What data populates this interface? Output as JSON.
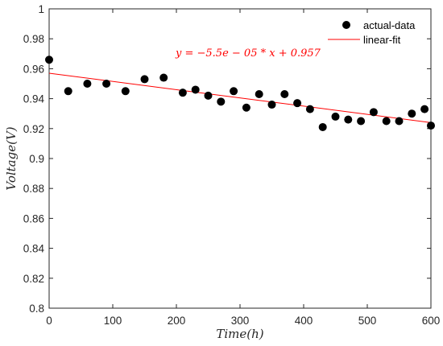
{
  "chart_data": {
    "type": "scatter",
    "xlabel": "Time(h)",
    "ylabel": "Voltage(V)",
    "xlim": [
      0,
      600
    ],
    "ylim": [
      0.8,
      1.0
    ],
    "x_ticks": [
      "0",
      "100",
      "200",
      "300",
      "400",
      "500",
      "600"
    ],
    "y_ticks": [
      "0.8",
      "0.82",
      "0.84",
      "0.86",
      "0.88",
      "0.9",
      "0.92",
      "0.94",
      "0.96",
      "0.98",
      "1"
    ],
    "grid": false,
    "legend_position": "top-right",
    "series": [
      {
        "name": "actual-data",
        "style": "markers",
        "color": "#000000",
        "x": [
          0,
          30,
          60,
          90,
          120,
          150,
          180,
          210,
          230,
          250,
          270,
          290,
          310,
          330,
          350,
          370,
          390,
          410,
          430,
          450,
          470,
          490,
          510,
          530,
          550,
          570,
          590,
          600
        ],
        "y": [
          0.966,
          0.945,
          0.95,
          0.95,
          0.945,
          0.953,
          0.954,
          0.944,
          0.946,
          0.942,
          0.938,
          0.945,
          0.934,
          0.943,
          0.936,
          0.943,
          0.937,
          0.933,
          0.921,
          0.928,
          0.926,
          0.925,
          0.931,
          0.925,
          0.925,
          0.93,
          0.933,
          0.922
        ]
      },
      {
        "name": "linear-fit",
        "style": "line",
        "color": "#ff0000",
        "x": [
          0,
          600
        ],
        "y": [
          0.957,
          0.924
        ]
      }
    ],
    "annotation": {
      "text": "y = −5.5e − 05 * x + 0.957",
      "color": "#ff0000"
    }
  }
}
